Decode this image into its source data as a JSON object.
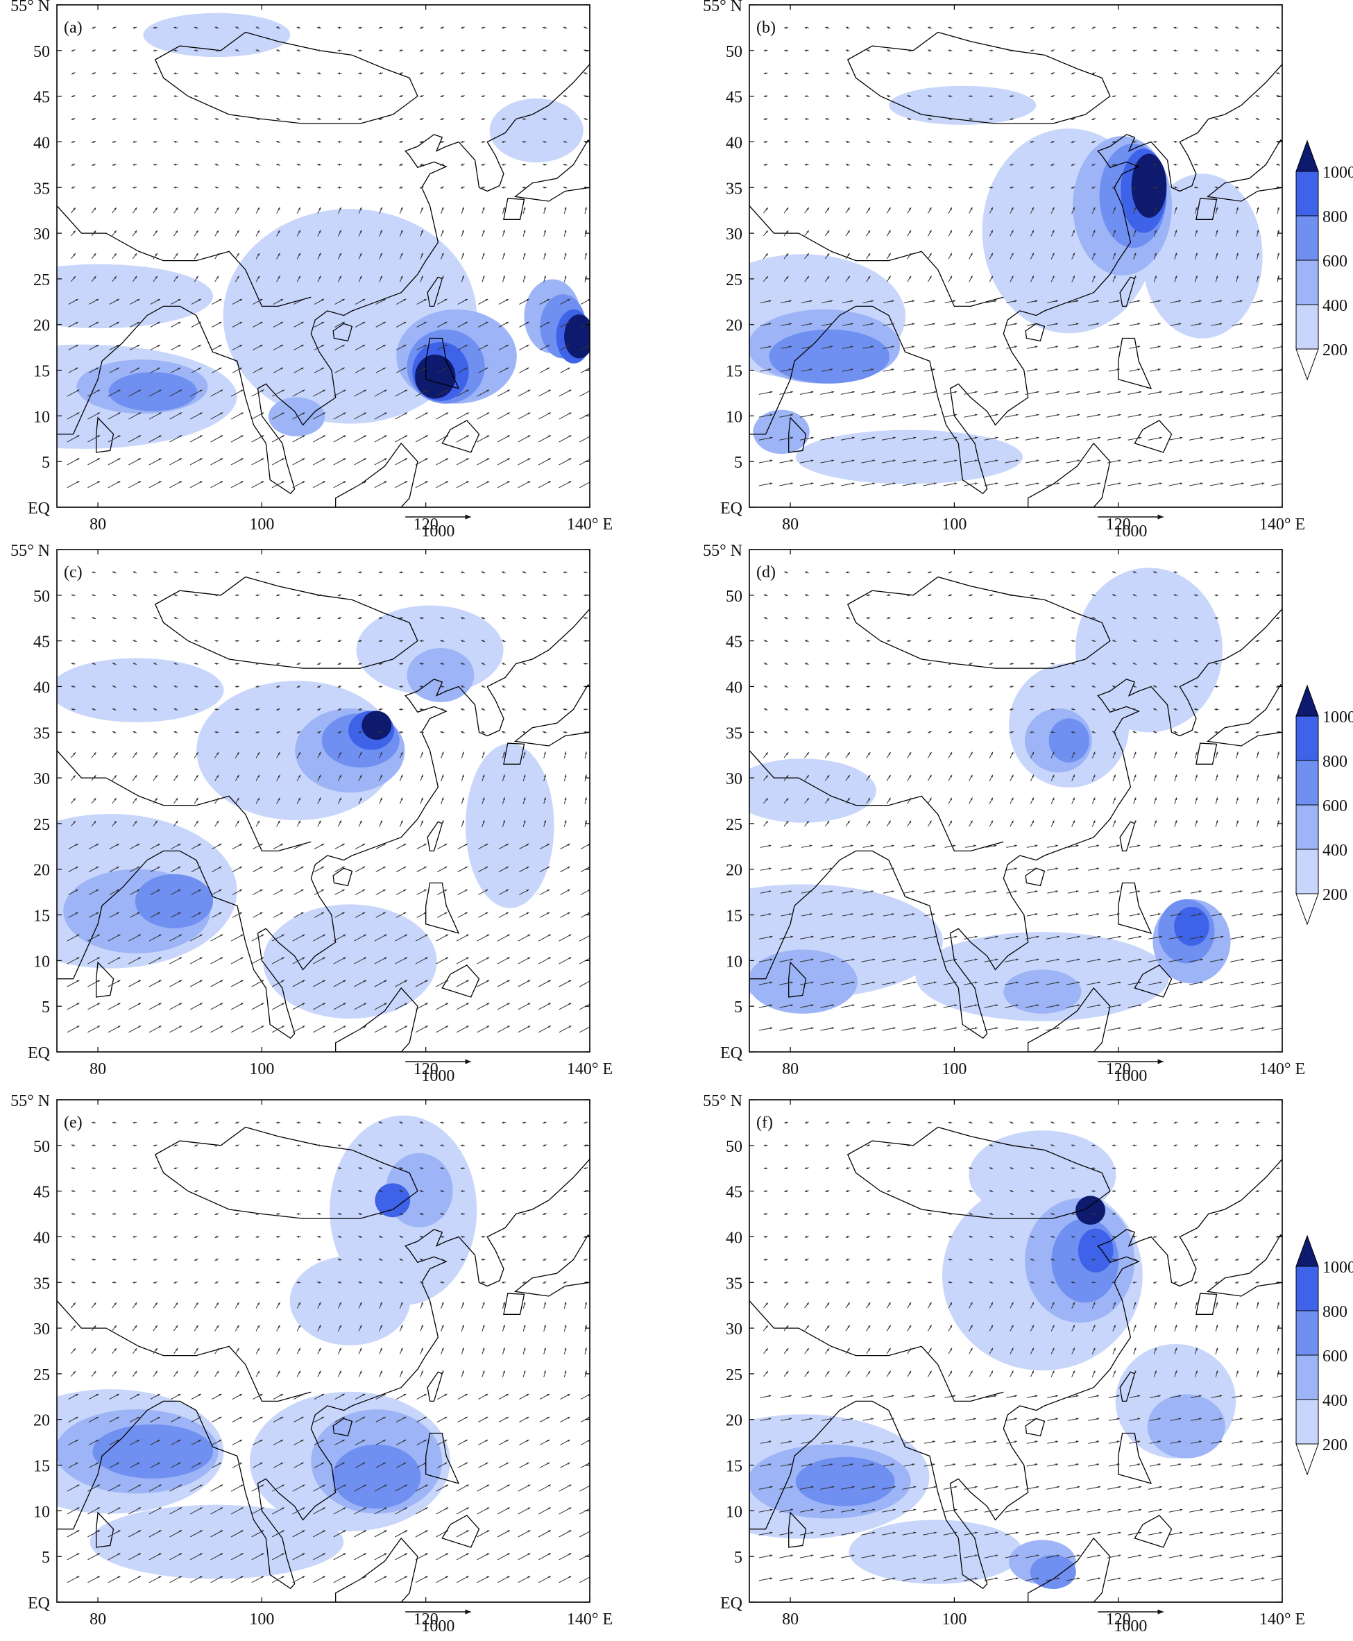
{
  "figure": {
    "panels": [
      {
        "label": "(a)",
        "show_colorbar": false
      },
      {
        "label": "(b)",
        "show_colorbar": true
      },
      {
        "label": "(c)",
        "show_colorbar": false
      },
      {
        "label": "(d)",
        "show_colorbar": true
      },
      {
        "label": "(e)",
        "show_colorbar": false
      },
      {
        "label": "(f)",
        "show_colorbar": true
      }
    ],
    "lat_ticks": [
      "55° N",
      "50",
      "45",
      "40",
      "35",
      "30",
      "25",
      "20",
      "15",
      "10",
      "5",
      "EQ"
    ],
    "lon_ticks": [
      "80",
      "100",
      "120",
      "140° E"
    ],
    "reference_vector": "1000",
    "colorbar": {
      "levels": [
        "200",
        "400",
        "600",
        "800",
        "1000"
      ],
      "colors": [
        "#ffffff",
        "#c9d6fb",
        "#9db4f6",
        "#6f8ff1",
        "#3f63e8",
        "#0d1a6e"
      ]
    },
    "colors": {
      "level1": "#c9d6fb",
      "level2": "#9db4f6",
      "level3": "#6f8ff1",
      "level4": "#3f63e8",
      "level5": "#0d1a6e",
      "coastline": "#000000",
      "arrow": "#333333"
    }
  }
}
